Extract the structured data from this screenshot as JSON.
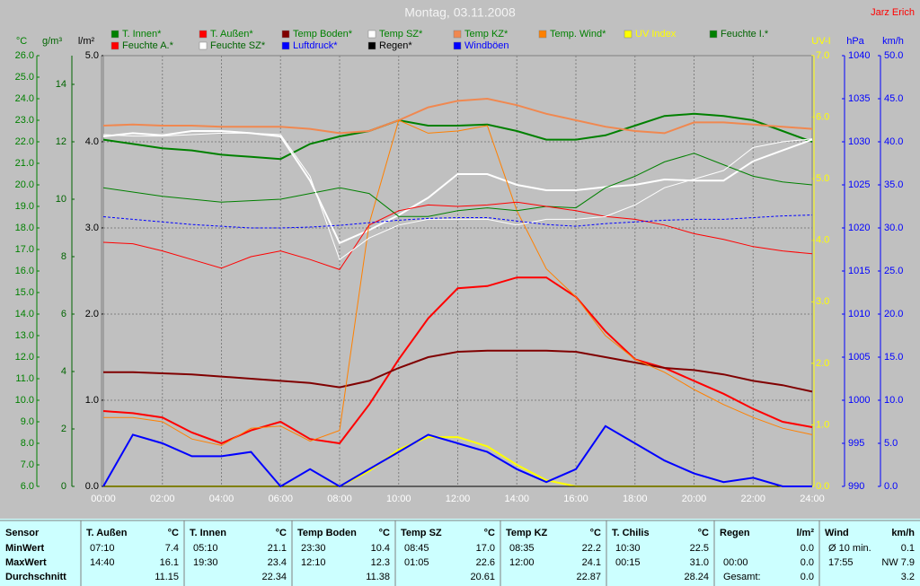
{
  "chart_data": {
    "type": "line",
    "title": "Montag, 03.11.2008",
    "author": "Jarz Erich",
    "grid": true,
    "x": [
      0,
      1,
      2,
      3,
      4,
      5,
      6,
      7,
      8,
      9,
      10,
      11,
      12,
      13,
      14,
      15,
      16,
      17,
      18,
      19,
      20,
      21,
      22,
      23,
      24
    ],
    "xlim": [
      0,
      24
    ],
    "xticks": [
      {
        "value": 0,
        "label": "00:00"
      },
      {
        "value": 2,
        "label": "02:00"
      },
      {
        "value": 4,
        "label": "04:00"
      },
      {
        "value": 6,
        "label": "06:00"
      },
      {
        "value": 8,
        "label": "08:00"
      },
      {
        "value": 10,
        "label": "10:00"
      },
      {
        "value": 12,
        "label": "12:00"
      },
      {
        "value": 14,
        "label": "14:00"
      },
      {
        "value": 16,
        "label": "16:00"
      },
      {
        "value": 18,
        "label": "18:00"
      },
      {
        "value": 20,
        "label": "20:00"
      },
      {
        "value": 22,
        "label": "22:00"
      },
      {
        "value": 24,
        "label": "24:00"
      }
    ],
    "axes": [
      {
        "label": "°C",
        "color": "#008000",
        "lim": [
          6,
          26
        ],
        "ticks": [
          {
            "value": 6,
            "label": "6.0"
          },
          {
            "value": 7,
            "label": "7.0"
          },
          {
            "value": 8,
            "label": "8.0"
          },
          {
            "value": 9,
            "label": "9.0"
          },
          {
            "value": 10,
            "label": "10.0"
          },
          {
            "value": 11,
            "label": "11.0"
          },
          {
            "value": 12,
            "label": "12.0"
          },
          {
            "value": 13,
            "label": "13.0"
          },
          {
            "value": 14,
            "label": "14.0"
          },
          {
            "value": 15,
            "label": "15.0"
          },
          {
            "value": 16,
            "label": "16.0"
          },
          {
            "value": 17,
            "label": "17.0"
          },
          {
            "value": 18,
            "label": "18.0"
          },
          {
            "value": 19,
            "label": "19.0"
          },
          {
            "value": 20,
            "label": "20.0"
          },
          {
            "value": 21,
            "label": "21.0"
          },
          {
            "value": 22,
            "label": "22.0"
          },
          {
            "value": 23,
            "label": "23.0"
          },
          {
            "value": 24,
            "label": "24.0"
          },
          {
            "value": 25,
            "label": "25.0"
          },
          {
            "value": 26,
            "label": "26.0"
          }
        ]
      },
      {
        "label": "g/m³",
        "color": "#006400",
        "lim": [
          0,
          15
        ],
        "ticks": [
          0,
          2,
          4,
          6,
          8,
          10,
          12,
          14
        ]
      },
      {
        "label": "l/m²",
        "color": "#000000",
        "lim": [
          0,
          5
        ],
        "ticks": [
          {
            "value": 0,
            "label": "0.0"
          },
          {
            "value": 1,
            "label": "1.0"
          },
          {
            "value": 2,
            "label": "2.0"
          },
          {
            "value": 3,
            "label": "3.0"
          },
          {
            "value": 4,
            "label": "4.0"
          },
          {
            "value": 5,
            "label": "5.0"
          }
        ]
      },
      {
        "label": "UV-I",
        "color": "#ffff00",
        "lim": [
          0,
          7
        ],
        "ticks": [
          {
            "value": 0,
            "label": "0.0"
          },
          {
            "value": 1,
            "label": "1.0"
          },
          {
            "value": 2,
            "label": "2.0"
          },
          {
            "value": 3,
            "label": "3.0"
          },
          {
            "value": 4,
            "label": "4.0"
          },
          {
            "value": 5,
            "label": "5.0"
          },
          {
            "value": 6,
            "label": "6.0"
          },
          {
            "value": 7,
            "label": "7.0"
          }
        ]
      },
      {
        "label": "hPa",
        "color": "#0000ff",
        "lim": [
          990,
          1040
        ],
        "ticks": [
          990,
          995,
          1000,
          1005,
          1010,
          1015,
          1020,
          1025,
          1030,
          1035,
          1040
        ]
      },
      {
        "label": "km/h",
        "color": "#0000ff",
        "lim": [
          0,
          50
        ],
        "ticks": [
          {
            "value": 0,
            "label": "0.0"
          },
          {
            "value": 5,
            "label": "5.0"
          },
          {
            "value": 10,
            "label": "10.0"
          },
          {
            "value": 15,
            "label": "15.0"
          },
          {
            "value": 20,
            "label": "20.0"
          },
          {
            "value": 25,
            "label": "25.0"
          },
          {
            "value": 30,
            "label": "30.0"
          },
          {
            "value": 35,
            "label": "35.0"
          },
          {
            "value": 40,
            "label": "40.0"
          },
          {
            "value": 45,
            "label": "45.0"
          },
          {
            "value": 50,
            "label": "50.0"
          }
        ]
      }
    ],
    "series": [
      {
        "name": "T. Innen*",
        "color": "#008000",
        "axis": 0,
        "thick": true,
        "values": [
          22.1,
          21.9,
          21.7,
          21.6,
          21.4,
          21.3,
          21.2,
          21.9,
          22.25,
          22.5,
          23.0,
          22.75,
          22.75,
          22.8,
          22.5,
          22.1,
          22.1,
          22.3,
          22.75,
          23.2,
          23.3,
          23.2,
          23.0,
          22.5,
          22.0
        ]
      },
      {
        "name": "T. Außen*",
        "color": "#ff0000",
        "axis": 0,
        "thick": true,
        "values": [
          9.5,
          9.4,
          9.2,
          8.5,
          8.0,
          8.6,
          9.0,
          8.2,
          8.0,
          9.8,
          11.9,
          13.8,
          15.2,
          15.3,
          15.7,
          15.7,
          14.8,
          13.2,
          11.9,
          11.5,
          10.9,
          10.3,
          9.6,
          9.0,
          8.75
        ]
      },
      {
        "name": "Temp Boden*",
        "color": "#800000",
        "axis": 0,
        "thick": true,
        "values": [
          11.3,
          11.3,
          11.25,
          11.2,
          11.1,
          11.0,
          10.9,
          10.8,
          10.6,
          10.9,
          11.5,
          12.0,
          12.25,
          12.3,
          12.3,
          12.3,
          12.25,
          12.0,
          11.75,
          11.5,
          11.4,
          11.2,
          10.9,
          10.7,
          10.4
        ]
      },
      {
        "name": "Temp SZ*",
        "color": "#ffffff",
        "axis": 0,
        "thick": true,
        "values": [
          22.25,
          22.4,
          22.3,
          22.5,
          22.5,
          22.4,
          22.25,
          20.2,
          17.3,
          17.9,
          18.6,
          19.4,
          20.5,
          20.5,
          20.0,
          19.75,
          19.75,
          19.9,
          20.0,
          20.25,
          20.2,
          20.2,
          21.1,
          21.6,
          22.1
        ]
      },
      {
        "name": "Temp KZ*",
        "color": "#f08850",
        "axis": 0,
        "thick": true,
        "values": [
          22.75,
          22.8,
          22.75,
          22.75,
          22.7,
          22.7,
          22.7,
          22.6,
          22.4,
          22.5,
          23.0,
          23.6,
          23.9,
          24.0,
          23.7,
          23.3,
          23.0,
          22.7,
          22.5,
          22.4,
          22.9,
          22.9,
          22.8,
          22.7,
          22.6
        ]
      },
      {
        "name": "Temp. Wind*",
        "color": "#ff8000",
        "axis": 0,
        "thick": false,
        "values": [
          9.2,
          9.2,
          9.0,
          8.2,
          7.9,
          8.7,
          8.8,
          8.1,
          8.6,
          18.2,
          23.0,
          22.4,
          22.5,
          22.75,
          18.8,
          16.1,
          14.8,
          13.0,
          11.9,
          11.3,
          10.5,
          9.8,
          9.2,
          8.7,
          8.4
        ]
      },
      {
        "name": "UV Index",
        "color": "#ffff00",
        "axis": 3,
        "thick": true,
        "values": [
          0,
          0,
          0,
          0,
          0,
          0,
          0,
          0,
          0,
          0.25,
          0.6,
          0.8,
          0.8,
          0.65,
          0.35,
          0.1,
          0,
          0,
          0,
          0,
          0,
          0,
          0,
          0,
          0
        ]
      },
      {
        "name": "Feuchte I.*",
        "color": "#008000",
        "axis": 1,
        "thick": false,
        "values": [
          10.4,
          10.25,
          10.1,
          10.0,
          9.9,
          9.95,
          10.0,
          10.2,
          10.4,
          10.2,
          9.4,
          9.4,
          9.6,
          9.7,
          9.6,
          9.75,
          9.7,
          10.4,
          10.8,
          11.3,
          11.6,
          11.2,
          10.8,
          10.6,
          10.5
        ]
      },
      {
        "name": "Feuchte A.*",
        "color": "#ff0000",
        "axis": 1,
        "thick": false,
        "values": [
          8.5,
          8.45,
          8.2,
          7.9,
          7.6,
          8.0,
          8.2,
          7.9,
          7.55,
          9.1,
          9.6,
          9.8,
          9.75,
          9.8,
          9.9,
          9.75,
          9.6,
          9.4,
          9.3,
          9.1,
          8.8,
          8.6,
          8.35,
          8.2,
          8.1
        ]
      },
      {
        "name": "Feuchte SZ*",
        "color": "#ffffff",
        "axis": 1,
        "thick": false,
        "values": [
          12.25,
          12.2,
          12.2,
          12.25,
          12.3,
          12.3,
          12.25,
          10.8,
          7.9,
          8.65,
          9.1,
          9.3,
          9.3,
          9.3,
          9.1,
          9.3,
          9.3,
          9.4,
          9.8,
          10.4,
          10.7,
          11.0,
          11.8,
          12.0,
          12.1
        ]
      },
      {
        "name": "Luftdruck*",
        "color": "#0000ff",
        "axis": 4,
        "thick": false,
        "dashed": true,
        "values": [
          1021.3,
          1021.0,
          1020.7,
          1020.4,
          1020.2,
          1020.0,
          1020.0,
          1020.1,
          1020.3,
          1020.6,
          1020.9,
          1021.1,
          1021.2,
          1021.2,
          1020.8,
          1020.4,
          1020.2,
          1020.5,
          1020.7,
          1020.9,
          1021.0,
          1021.0,
          1021.2,
          1021.4,
          1021.5
        ]
      },
      {
        "name": "Regen*",
        "color": "#000000",
        "axis": 2,
        "thick": false,
        "values": [
          0,
          0,
          0,
          0,
          0,
          0,
          0,
          0,
          0,
          0,
          0,
          0,
          0,
          0,
          0,
          0,
          0,
          0,
          0,
          0,
          0,
          0,
          0,
          0,
          0
        ]
      },
      {
        "name": "Windböen",
        "color": "#0000ff",
        "axis": 5,
        "thick": true,
        "values": [
          0,
          6,
          5,
          3.5,
          3.5,
          4,
          0,
          2,
          0,
          2,
          4,
          6,
          5,
          4,
          2,
          0.5,
          2,
          7,
          5,
          3,
          1.5,
          0.5,
          1,
          0,
          0
        ]
      }
    ]
  },
  "table": {
    "header": "Sensor",
    "row_labels": [
      "MinWert",
      "MaxWert",
      "Durchschnitt"
    ],
    "columns": [
      {
        "name": "T. Außen",
        "unit": "°C",
        "cells": [
          [
            "07:10",
            "7.4"
          ],
          [
            "14:40",
            "16.1"
          ],
          [
            null,
            "11.15"
          ]
        ]
      },
      {
        "name": "T. Innen",
        "unit": "°C",
        "cells": [
          [
            "05:10",
            "21.1"
          ],
          [
            "19:30",
            "23.4"
          ],
          [
            null,
            "22.34"
          ]
        ]
      },
      {
        "name": "Temp Boden",
        "unit": "°C",
        "cells": [
          [
            "23:30",
            "10.4"
          ],
          [
            "12:10",
            "12.3"
          ],
          [
            null,
            "11.38"
          ]
        ]
      },
      {
        "name": "Temp SZ",
        "unit": "°C",
        "cells": [
          [
            "08:45",
            "17.0"
          ],
          [
            "01:05",
            "22.6"
          ],
          [
            null,
            "20.61"
          ]
        ]
      },
      {
        "name": "Temp KZ",
        "unit": "°C",
        "cells": [
          [
            "08:35",
            "22.2"
          ],
          [
            "12:00",
            "24.1"
          ],
          [
            null,
            "22.87"
          ]
        ]
      },
      {
        "name": "T. Chilis",
        "unit": "°C",
        "cells": [
          [
            "10:30",
            "22.5"
          ],
          [
            "00:15",
            "31.0"
          ],
          [
            null,
            "28.24"
          ]
        ]
      },
      {
        "name": "Regen",
        "unit": "l/m²",
        "cells": [
          [
            null,
            "0.0"
          ],
          [
            "00:00",
            "0.0"
          ],
          [
            "Gesamt:",
            "0.0"
          ]
        ]
      },
      {
        "name": "Wind",
        "unit": "km/h",
        "cells": [
          [
            "Ø 10 min.",
            "0.1"
          ],
          [
            "17:55",
            "NW 7.9"
          ],
          [
            null,
            "3.2"
          ]
        ]
      }
    ]
  }
}
